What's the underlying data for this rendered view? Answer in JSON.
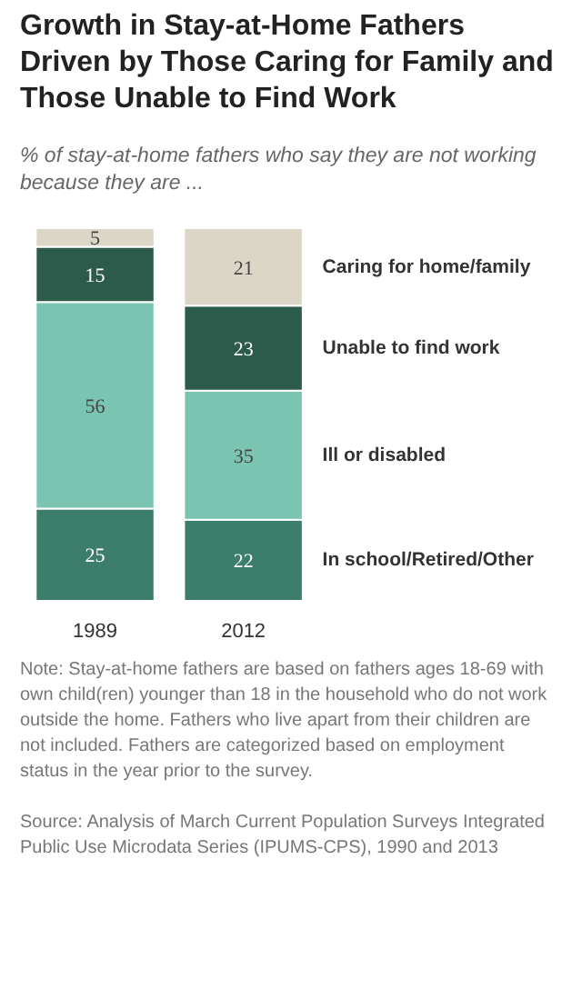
{
  "chart_data": {
    "type": "bar",
    "stacked": true,
    "title": "Growth in Stay-at-Home Fathers Driven by Those Caring for Family and Those Unable to Find Work",
    "subtitle": "% of stay-at-home fathers who say they are not working because they are ...",
    "categories": [
      "1989",
      "2012"
    ],
    "data_labels": true,
    "series": [
      {
        "name": "In school/Retired/Other",
        "color": "#3d7d6c",
        "values": [
          25,
          22
        ]
      },
      {
        "name": "Ill or disabled",
        "color": "#7cc4b2",
        "values": [
          56,
          35
        ]
      },
      {
        "name": "Unable to find work",
        "color": "#2c5a4b",
        "values": [
          15,
          23
        ]
      },
      {
        "name": "Caring for home/family",
        "color": "#dcd6c6",
        "values": [
          5,
          21
        ]
      }
    ],
    "annotations": [
      "Note: Stay-at-home fathers are based on fathers ages 18-69 with own child(ren) younger than 18 in the household who do not work outside the home. Fathers who live apart from their children are not included. Fathers are categorized based on employment status in the year prior to the survey.",
      "Source: Analysis of March Current Population Surveys Integrated Public Use Microdata Series (IPUMS-CPS), 1990 and 2013"
    ]
  }
}
